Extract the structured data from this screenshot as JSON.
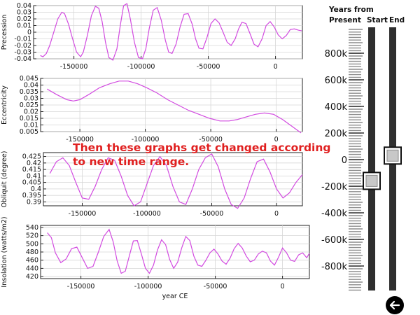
{
  "annotation": {
    "line1": "Then these graphs get changed according",
    "line2": "to new time range."
  },
  "slider": {
    "header_line1": "Years from",
    "header_line2": "Present",
    "start_label": "Start",
    "end_label": "End",
    "scale_labels": [
      "800k",
      "600k",
      "400k",
      "200k",
      "0",
      "-200k",
      "-400k",
      "-600k",
      "-800k"
    ],
    "start_value_k": -160,
    "end_value_k": 30
  },
  "back_button": {
    "icon": "arrow-left-icon"
  },
  "plot_color": "#d24be0",
  "chart_data": [
    {
      "type": "line",
      "ylabel": "Precession",
      "xlim": [
        -180000,
        20000
      ],
      "ylim": [
        -0.04,
        0.04
      ],
      "yticks": [
        0.04,
        0.03,
        0.02,
        0.01,
        0,
        -0.01,
        -0.02,
        -0.03,
        -0.04
      ],
      "ytick_labels": [
        "0.04",
        "0.03",
        "0.02",
        "0.01",
        "0",
        "-0.01",
        "-0.02",
        "-0.03",
        "-0.04"
      ],
      "xticks": [
        -150000,
        -100000,
        -50000,
        0
      ],
      "xtick_labels": [
        "-150000",
        "-100000",
        "-50000",
        "0"
      ],
      "grid": true,
      "series": [
        {
          "x": [
            -175000,
            -173000,
            -170500,
            -168000,
            -165000,
            -162000,
            -159000,
            -157000,
            -154000,
            -151000,
            -148000,
            -145000,
            -143000,
            -140000,
            -137000,
            -134000,
            -131500,
            -129000,
            -126500,
            -124000,
            -121000,
            -118000,
            -115500,
            -113000,
            -110500,
            -108000,
            -105000,
            -102000,
            -99000,
            -96500,
            -94000,
            -91000,
            -88000,
            -85000,
            -82000,
            -79500,
            -77000,
            -74000,
            -71000,
            -68000,
            -65000,
            -62000,
            -59500,
            -57000,
            -54000,
            -51000,
            -48000,
            -45000,
            -42000,
            -39000,
            -36000,
            -33000,
            -30000,
            -27500,
            -25000,
            -22000,
            -19000,
            -16000,
            -13000,
            -10000,
            -7000,
            -4000,
            -1000,
            2000,
            5000,
            8000,
            11000,
            14000,
            17000,
            19500
          ],
          "y": [
            -0.035,
            -0.037,
            -0.032,
            -0.02,
            0,
            0.02,
            0.03,
            0.028,
            0.012,
            -0.01,
            -0.03,
            -0.037,
            -0.03,
            -0.005,
            0.025,
            0.039,
            0.036,
            0.016,
            -0.015,
            -0.038,
            -0.042,
            -0.025,
            0.01,
            0.04,
            0.043,
            0.02,
            -0.015,
            -0.038,
            -0.04,
            -0.025,
            0.005,
            0.033,
            0.037,
            0.018,
            -0.012,
            -0.03,
            -0.032,
            -0.018,
            0.008,
            0.027,
            0.028,
            0.012,
            -0.01,
            -0.024,
            -0.025,
            -0.008,
            0.013,
            0.02,
            0.014,
            0,
            -0.015,
            -0.02,
            -0.01,
            0.005,
            0.015,
            0.013,
            -0.002,
            -0.018,
            -0.022,
            -0.01,
            0.01,
            0.016,
            0.008,
            -0.004,
            -0.01,
            -0.005,
            0.004,
            0.005,
            0.003,
            0.002
          ]
        }
      ]
    },
    {
      "type": "line",
      "ylabel": "Eccentricity",
      "xlim": [
        -180000,
        20000
      ],
      "ylim": [
        0.005,
        0.045
      ],
      "yticks": [
        0.045,
        0.04,
        0.035,
        0.03,
        0.025,
        0.02,
        0.015,
        0.01,
        0.005
      ],
      "ytick_labels": [
        "0.045",
        "0.04",
        "0.035",
        "0.03",
        "0.025",
        "0.02",
        "0.015",
        "0.01",
        "0.005"
      ],
      "xticks": [
        -150000,
        -100000,
        -50000,
        0
      ],
      "xtick_labels": [
        "-150000",
        "-100000",
        "-50000",
        "0"
      ],
      "grid": true,
      "series": [
        {
          "x": [
            -175000,
            -168000,
            -160000,
            -155000,
            -150000,
            -143000,
            -135000,
            -127000,
            -120000,
            -113000,
            -106000,
            -99000,
            -91000,
            -83000,
            -75000,
            -67000,
            -59000,
            -51000,
            -43000,
            -36000,
            -30000,
            -23000,
            -16000,
            -9000,
            -2000,
            5000,
            12000,
            19000
          ],
          "y": [
            0.037,
            0.033,
            0.029,
            0.028,
            0.029,
            0.033,
            0.038,
            0.041,
            0.043,
            0.043,
            0.041,
            0.038,
            0.034,
            0.029,
            0.025,
            0.021,
            0.018,
            0.015,
            0.013,
            0.013,
            0.014,
            0.016,
            0.018,
            0.019,
            0.018,
            0.014,
            0.009,
            0.004
          ]
        }
      ]
    },
    {
      "type": "line",
      "ylabel": "Obliquit (degree)",
      "xlim": [
        -180000,
        20000
      ],
      "ylim": [
        0.387,
        0.428
      ],
      "yticks": [
        0.425,
        0.42,
        0.415,
        0.41,
        0.405,
        0.4,
        0.395,
        0.39
      ],
      "ytick_labels": [
        "0.425",
        "0.42",
        "0.415",
        "0.41",
        "0.405",
        "0.4",
        "0.395",
        "0.39"
      ],
      "xticks": [
        -150000,
        -100000,
        -50000,
        0
      ],
      "xtick_labels": [
        "-150000",
        "-100000",
        "-50000",
        "0"
      ],
      "grid": true,
      "series": [
        {
          "x": [
            -175000,
            -170000,
            -165000,
            -160000,
            -155000,
            -150000,
            -145000,
            -140000,
            -135000,
            -130000,
            -125000,
            -120000,
            -115000,
            -110000,
            -105000,
            -100000,
            -95000,
            -90000,
            -85000,
            -80000,
            -75000,
            -70000,
            -65000,
            -60000,
            -55000,
            -50000,
            -45000,
            -40000,
            -35000,
            -30000,
            -25000,
            -20000,
            -15000,
            -10000,
            -5000,
            0,
            5000,
            10000,
            15000,
            20000
          ],
          "y": [
            0.412,
            0.421,
            0.424,
            0.418,
            0.405,
            0.393,
            0.392,
            0.402,
            0.415,
            0.424,
            0.422,
            0.41,
            0.395,
            0.387,
            0.39,
            0.404,
            0.418,
            0.425,
            0.418,
            0.402,
            0.39,
            0.388,
            0.4,
            0.415,
            0.424,
            0.427,
            0.417,
            0.4,
            0.388,
            0.385,
            0.393,
            0.408,
            0.421,
            0.423,
            0.413,
            0.4,
            0.393,
            0.397,
            0.405,
            0.411
          ]
        }
      ]
    },
    {
      "type": "line",
      "ylabel": "Insolation (watts/m2)",
      "xlabel": "year CE",
      "xlim": [
        -180000,
        20000
      ],
      "ylim": [
        415,
        545
      ],
      "yticks": [
        540,
        520,
        500,
        480,
        460,
        440,
        420
      ],
      "ytick_labels": [
        "540",
        "520",
        "500",
        "480",
        "460",
        "440",
        "420"
      ],
      "xticks": [
        -150000,
        -100000,
        -50000,
        0
      ],
      "xtick_labels": [
        "-150000",
        "-100000",
        "-50000",
        "0"
      ],
      "grid": true,
      "series": [
        {
          "x": [
            -175000,
            -172000,
            -169000,
            -165000,
            -161000,
            -157000,
            -153000,
            -149000,
            -145000,
            -141000,
            -137000,
            -133000,
            -129000,
            -126000,
            -123000,
            -120000,
            -117000,
            -114000,
            -111000,
            -108000,
            -105000,
            -102000,
            -99000,
            -96000,
            -93000,
            -90000,
            -87000,
            -84000,
            -81000,
            -78000,
            -75000,
            -72000,
            -69000,
            -66000,
            -63000,
            -60000,
            -57000,
            -54000,
            -51000,
            -48000,
            -45000,
            -42000,
            -39000,
            -36000,
            -33000,
            -30000,
            -27000,
            -24000,
            -21000,
            -18000,
            -15000,
            -12000,
            -9000,
            -6000,
            -3000,
            0,
            3000,
            6000,
            9000,
            12000,
            15000,
            18000,
            20000
          ],
          "y": [
            527,
            515,
            478,
            454,
            463,
            488,
            492,
            466,
            440,
            445,
            480,
            518,
            535,
            505,
            458,
            428,
            433,
            470,
            507,
            508,
            475,
            440,
            428,
            448,
            485,
            510,
            498,
            462,
            440,
            455,
            490,
            518,
            508,
            470,
            448,
            445,
            460,
            478,
            487,
            475,
            458,
            450,
            465,
            488,
            501,
            490,
            470,
            456,
            460,
            475,
            482,
            478,
            458,
            448,
            467,
            490,
            478,
            460,
            457,
            473,
            478,
            466,
            477
          ]
        }
      ]
    }
  ]
}
